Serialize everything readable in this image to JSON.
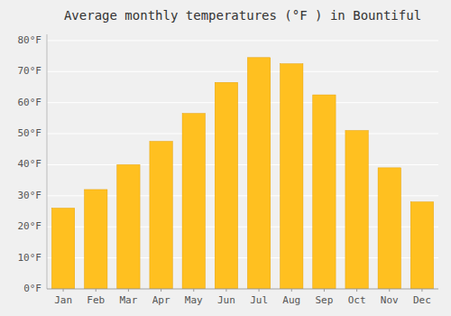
{
  "chart_data": {
    "type": "bar",
    "title": "Average monthly temperatures (°F ) in Bountiful",
    "categories": [
      "Jan",
      "Feb",
      "Mar",
      "Apr",
      "May",
      "Jun",
      "Jul",
      "Aug",
      "Sep",
      "Oct",
      "Nov",
      "Dec"
    ],
    "values": [
      26,
      32,
      40,
      47.5,
      56.5,
      66.5,
      74.5,
      72.5,
      62.5,
      51,
      39,
      28
    ],
    "color": "#FFC020",
    "ylim": [
      0,
      82
    ],
    "yticks": [
      {
        "value": 0,
        "label": "0°F"
      },
      {
        "value": 10,
        "label": "10°F"
      },
      {
        "value": 20,
        "label": "20°F"
      },
      {
        "value": 30,
        "label": "30°F"
      },
      {
        "value": 40,
        "label": "40°F"
      },
      {
        "value": 50,
        "label": "50°F"
      },
      {
        "value": 60,
        "label": "60°F"
      },
      {
        "value": 70,
        "label": "70°F"
      },
      {
        "value": 80,
        "label": "80°F"
      }
    ],
    "grid": true
  }
}
